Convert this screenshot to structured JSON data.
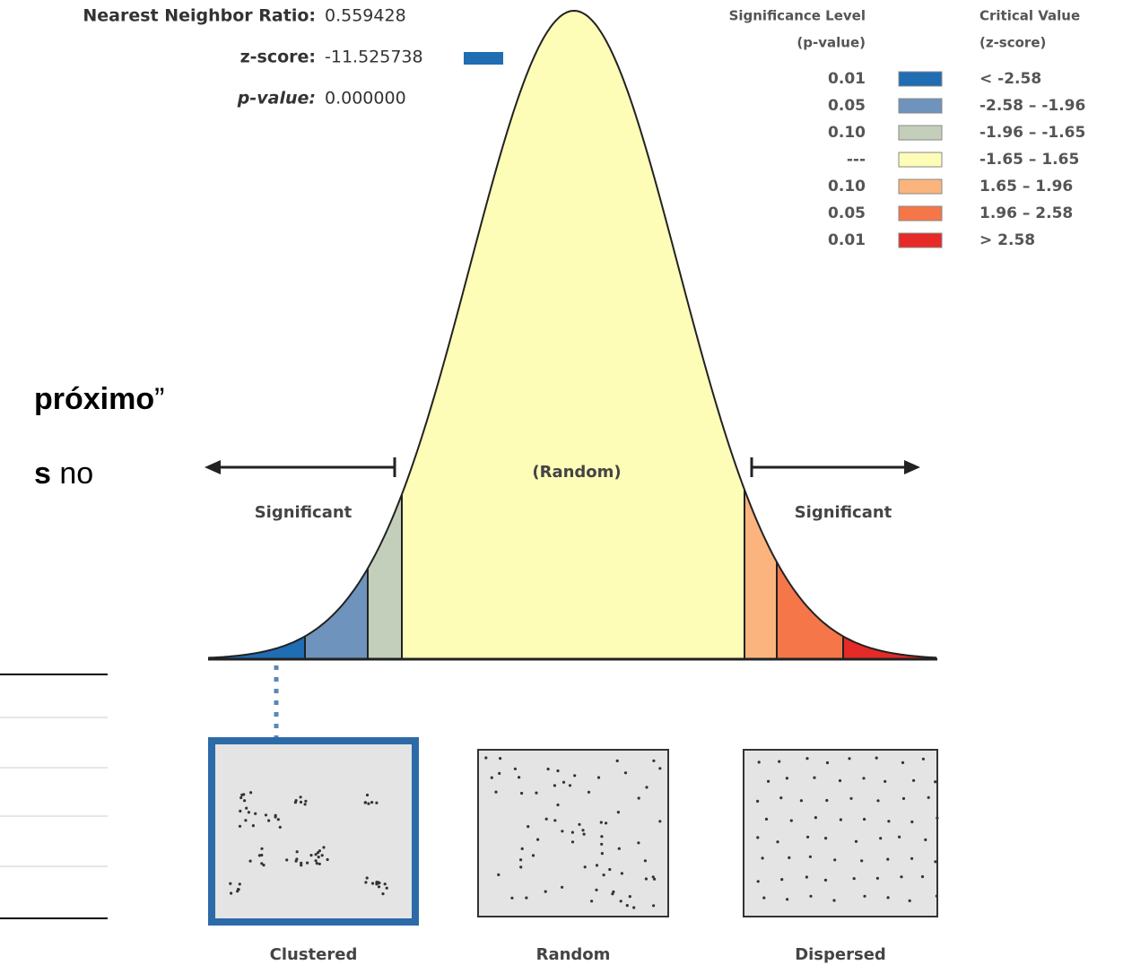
{
  "report": {
    "ratio_label": "Nearest Neighbor Ratio:",
    "ratio_value": "0.559428",
    "z_label": "z-score:",
    "z_value": "-11.525738",
    "p_label": "p-value:",
    "p_value": "0.000000"
  },
  "legend": {
    "sig_title": "Significance Level",
    "sig_sub": "(p-value)",
    "crit_title": "Critical Value",
    "crit_sub": "(z-score)",
    "rows": [
      {
        "p": "0.01",
        "range": "< -2.58",
        "color": "#1f6db3"
      },
      {
        "p": "0.05",
        "range": "-2.58 – -1.96",
        "color": "#6e93bc"
      },
      {
        "p": "0.10",
        "range": "-1.96 – -1.65",
        "color": "#c3cfbb"
      },
      {
        "p": "---",
        "range": "-1.65 – 1.65",
        "color": "#fdfdb8"
      },
      {
        "p": "0.10",
        "range": "1.65 – 1.96",
        "color": "#fbb47e"
      },
      {
        "p": "0.05",
        "range": "1.96 – 2.58",
        "color": "#f57649"
      },
      {
        "p": "0.01",
        "range": "> 2.58",
        "color": "#e52a28"
      }
    ]
  },
  "curve": {
    "random_label": "(Random)",
    "significant_left": "Significant",
    "significant_right": "Significant"
  },
  "panels": [
    {
      "label": "Clustered"
    },
    {
      "label": "Random"
    },
    {
      "label": "Dispersed"
    }
  ],
  "slide_text": {
    "line1_bold": "próximo",
    "line1_rest": "”",
    "line2_bold": "s",
    "line2_rest": " no"
  }
}
